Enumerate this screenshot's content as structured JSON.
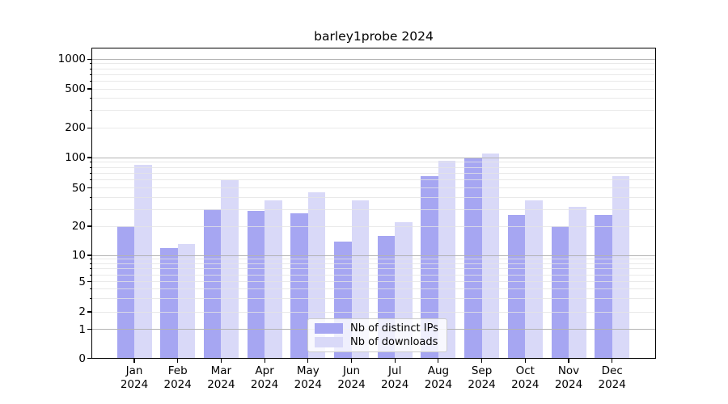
{
  "chart_data": {
    "type": "bar",
    "title": "barley1probe 2024",
    "categories": [
      "Jan",
      "Feb",
      "Mar",
      "Apr",
      "May",
      "Jun",
      "Jul",
      "Aug",
      "Sep",
      "Oct",
      "Nov",
      "Dec"
    ],
    "year": "2024",
    "series": [
      {
        "name": "Nb of distinct IPs",
        "values": [
          20,
          12,
          30,
          29,
          27,
          14,
          16,
          65,
          100,
          26,
          20,
          26
        ]
      },
      {
        "name": "Nb of downloads",
        "values": [
          85,
          13,
          60,
          37,
          45,
          37,
          22,
          93,
          110,
          37,
          32,
          65
        ]
      }
    ],
    "ytick_labels": [
      "0",
      "1",
      "2",
      "5",
      "10",
      "20",
      "50",
      "100",
      "200",
      "500",
      "1000"
    ],
    "yticks": [
      0,
      1,
      2,
      5,
      10,
      20,
      50,
      100,
      200,
      500,
      1000
    ],
    "scale": "symlog",
    "ylim": [
      0,
      1300
    ],
    "grid": true,
    "legend_position": "lower center",
    "xlabel": "",
    "ylabel": ""
  },
  "colors": {
    "distinct_ips_bar": "#a6a6f2",
    "downloads_bar": "#d9d9f8",
    "major_grid": "#b3b3b3",
    "minor_grid": "#e4e4e4",
    "axis_line": "#000000",
    "legend_border": "#cccccc",
    "legend_background": "#ffffff",
    "text": "#000000"
  }
}
